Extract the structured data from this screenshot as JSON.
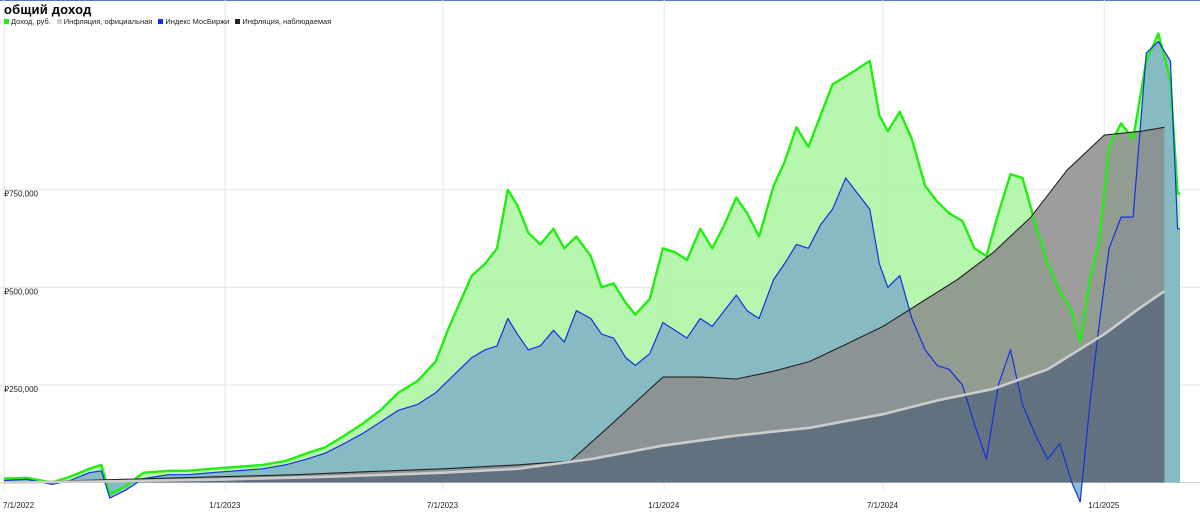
{
  "chart_data": {
    "type": "area",
    "title": "общий доход",
    "legend_position": "top-left",
    "grid": true,
    "x_start": "7/1/2022",
    "x_end": "3/5/2025",
    "x_ticks": [
      "7/1/2022",
      "1/1/2023",
      "7/1/2023",
      "1/1/2024",
      "7/1/2024",
      "1/1/2025"
    ],
    "y_ticks": [
      {
        "value": 250000,
        "label": "₽250,000"
      },
      {
        "value": 500000,
        "label": "₽500,000"
      },
      {
        "value": 750000,
        "label": "₽750,000"
      }
    ],
    "ylim": [
      -50000,
      1190000
    ],
    "series": [
      {
        "name": "Доход, руб.",
        "color": "#22ee11",
        "fill": "#aaf5a0",
        "points": [
          [
            "7/1/2022",
            10000
          ],
          [
            "7/20/2022",
            12000
          ],
          [
            "8/10/2022",
            0
          ],
          [
            "8/25/2022",
            15000
          ],
          [
            "9/10/2022",
            35000
          ],
          [
            "9/20/2022",
            45000
          ],
          [
            "9/27/2022",
            -30000
          ],
          [
            "10/10/2022",
            -10000
          ],
          [
            "10/25/2022",
            25000
          ],
          [
            "11/15/2022",
            30000
          ],
          [
            "12/1/2022",
            30000
          ],
          [
            "12/20/2022",
            35000
          ],
          [
            "1/10/2023",
            40000
          ],
          [
            "2/1/2023",
            45000
          ],
          [
            "2/20/2023",
            55000
          ],
          [
            "3/10/2023",
            75000
          ],
          [
            "3/25/2023",
            90000
          ],
          [
            "4/10/2023",
            120000
          ],
          [
            "4/25/2023",
            150000
          ],
          [
            "5/10/2023",
            185000
          ],
          [
            "5/25/2023",
            230000
          ],
          [
            "6/10/2023",
            260000
          ],
          [
            "6/25/2023",
            310000
          ],
          [
            "7/5/2023",
            390000
          ],
          [
            "7/15/2023",
            460000
          ],
          [
            "7/25/2023",
            530000
          ],
          [
            "8/5/2023",
            560000
          ],
          [
            "8/15/2023",
            600000
          ],
          [
            "8/24/2023",
            750000
          ],
          [
            "9/1/2023",
            710000
          ],
          [
            "9/10/2023",
            640000
          ],
          [
            "9/20/2023",
            610000
          ],
          [
            "10/1/2023",
            650000
          ],
          [
            "10/10/2023",
            600000
          ],
          [
            "10/20/2023",
            630000
          ],
          [
            "11/1/2023",
            580000
          ],
          [
            "11/10/2023",
            500000
          ],
          [
            "11/20/2023",
            510000
          ],
          [
            "11/30/2023",
            460000
          ],
          [
            "12/8/2023",
            430000
          ],
          [
            "12/20/2023",
            470000
          ],
          [
            "12/31/2023",
            600000
          ],
          [
            "1/10/2024",
            590000
          ],
          [
            "1/20/2024",
            570000
          ],
          [
            "1/31/2024",
            650000
          ],
          [
            "2/10/2024",
            600000
          ],
          [
            "2/20/2024",
            660000
          ],
          [
            "3/1/2024",
            730000
          ],
          [
            "3/10/2024",
            690000
          ],
          [
            "3/20/2024",
            630000
          ],
          [
            "4/1/2024",
            760000
          ],
          [
            "4/10/2024",
            820000
          ],
          [
            "4/20/2024",
            910000
          ],
          [
            "4/30/2024",
            860000
          ],
          [
            "5/10/2024",
            940000
          ],
          [
            "5/20/2024",
            1020000
          ],
          [
            "5/31/2024",
            1040000
          ],
          [
            "6/10/2024",
            1060000
          ],
          [
            "6/20/2024",
            1080000
          ],
          [
            "6/28/2024",
            940000
          ],
          [
            "7/5/2024",
            900000
          ],
          [
            "7/15/2024",
            950000
          ],
          [
            "7/25/2024",
            880000
          ],
          [
            "8/5/2024",
            760000
          ],
          [
            "8/15/2024",
            720000
          ],
          [
            "8/25/2024",
            690000
          ],
          [
            "9/5/2024",
            670000
          ],
          [
            "9/15/2024",
            600000
          ],
          [
            "9/25/2024",
            580000
          ],
          [
            "10/5/2024",
            690000
          ],
          [
            "10/15/2024",
            790000
          ],
          [
            "10/25/2024",
            780000
          ],
          [
            "11/5/2024",
            660000
          ],
          [
            "11/15/2024",
            560000
          ],
          [
            "11/25/2024",
            490000
          ],
          [
            "12/5/2024",
            440000
          ],
          [
            "12/12/2024",
            360000
          ],
          [
            "12/20/2024",
            520000
          ],
          [
            "12/28/2024",
            620000
          ],
          [
            "1/5/2025",
            860000
          ],
          [
            "1/15/2025",
            920000
          ],
          [
            "1/25/2025",
            880000
          ],
          [
            "2/5/2025",
            1080000
          ],
          [
            "2/15/2025",
            1150000
          ],
          [
            "2/25/2025",
            1030000
          ],
          [
            "3/3/2025",
            740000
          ],
          [
            "3/5/2025",
            740000
          ]
        ]
      },
      {
        "name": "Индекс МосБиржи",
        "color": "#1133dd",
        "fill": "#7fb0c8",
        "points": [
          [
            "7/1/2022",
            5000
          ],
          [
            "7/20/2022",
            8000
          ],
          [
            "8/10/2022",
            -5000
          ],
          [
            "8/25/2022",
            5000
          ],
          [
            "9/10/2022",
            25000
          ],
          [
            "9/20/2022",
            30000
          ],
          [
            "9/27/2022",
            -40000
          ],
          [
            "10/10/2022",
            -20000
          ],
          [
            "10/25/2022",
            10000
          ],
          [
            "11/15/2022",
            20000
          ],
          [
            "12/1/2022",
            20000
          ],
          [
            "12/20/2022",
            25000
          ],
          [
            "1/10/2023",
            30000
          ],
          [
            "2/1/2023",
            35000
          ],
          [
            "2/20/2023",
            45000
          ],
          [
            "3/10/2023",
            60000
          ],
          [
            "3/25/2023",
            75000
          ],
          [
            "4/10/2023",
            100000
          ],
          [
            "4/25/2023",
            125000
          ],
          [
            "5/10/2023",
            155000
          ],
          [
            "5/25/2023",
            185000
          ],
          [
            "6/10/2023",
            200000
          ],
          [
            "6/25/2023",
            230000
          ],
          [
            "7/5/2023",
            260000
          ],
          [
            "7/15/2023",
            290000
          ],
          [
            "7/25/2023",
            320000
          ],
          [
            "8/5/2023",
            340000
          ],
          [
            "8/15/2023",
            350000
          ],
          [
            "8/24/2023",
            420000
          ],
          [
            "9/1/2023",
            380000
          ],
          [
            "9/10/2023",
            340000
          ],
          [
            "9/20/2023",
            350000
          ],
          [
            "10/1/2023",
            390000
          ],
          [
            "10/10/2023",
            360000
          ],
          [
            "10/20/2023",
            440000
          ],
          [
            "11/1/2023",
            420000
          ],
          [
            "11/10/2023",
            380000
          ],
          [
            "11/20/2023",
            370000
          ],
          [
            "11/30/2023",
            320000
          ],
          [
            "12/8/2023",
            300000
          ],
          [
            "12/20/2023",
            330000
          ],
          [
            "12/31/2023",
            410000
          ],
          [
            "1/10/2024",
            390000
          ],
          [
            "1/20/2024",
            370000
          ],
          [
            "1/31/2024",
            420000
          ],
          [
            "2/10/2024",
            400000
          ],
          [
            "2/20/2024",
            440000
          ],
          [
            "3/1/2024",
            480000
          ],
          [
            "3/10/2024",
            440000
          ],
          [
            "3/20/2024",
            420000
          ],
          [
            "4/1/2024",
            520000
          ],
          [
            "4/10/2024",
            560000
          ],
          [
            "4/20/2024",
            610000
          ],
          [
            "4/30/2024",
            600000
          ],
          [
            "5/10/2024",
            660000
          ],
          [
            "5/20/2024",
            700000
          ],
          [
            "5/31/2024",
            780000
          ],
          [
            "6/10/2024",
            740000
          ],
          [
            "6/20/2024",
            700000
          ],
          [
            "6/28/2024",
            560000
          ],
          [
            "7/5/2024",
            500000
          ],
          [
            "7/15/2024",
            530000
          ],
          [
            "7/25/2024",
            420000
          ],
          [
            "8/5/2024",
            340000
          ],
          [
            "8/15/2024",
            300000
          ],
          [
            "8/25/2024",
            290000
          ],
          [
            "9/5/2024",
            250000
          ],
          [
            "9/15/2024",
            150000
          ],
          [
            "9/25/2024",
            60000
          ],
          [
            "10/5/2024",
            250000
          ],
          [
            "10/15/2024",
            340000
          ],
          [
            "10/25/2024",
            200000
          ],
          [
            "11/5/2024",
            120000
          ],
          [
            "11/15/2024",
            60000
          ],
          [
            "11/25/2024",
            100000
          ],
          [
            "12/5/2024",
            0
          ],
          [
            "12/12/2024",
            -50000
          ],
          [
            "12/20/2024",
            200000
          ],
          [
            "12/28/2024",
            410000
          ],
          [
            "1/5/2025",
            600000
          ],
          [
            "1/15/2025",
            680000
          ],
          [
            "1/25/2025",
            680000
          ],
          [
            "2/5/2025",
            1100000
          ],
          [
            "2/15/2025",
            1130000
          ],
          [
            "2/25/2025",
            1080000
          ],
          [
            "3/3/2025",
            650000
          ],
          [
            "3/5/2025",
            650000
          ]
        ]
      },
      {
        "name": "Инфляция, наблюдаемая",
        "color": "#222222",
        "fill": "#8c8c8c",
        "points": [
          [
            "7/1/2022",
            0
          ],
          [
            "9/1/2022",
            5000
          ],
          [
            "11/1/2022",
            10000
          ],
          [
            "1/1/2023",
            15000
          ],
          [
            "3/1/2023",
            20000
          ],
          [
            "5/1/2023",
            28000
          ],
          [
            "7/1/2023",
            35000
          ],
          [
            "9/1/2023",
            45000
          ],
          [
            "10/15/2023",
            55000
          ],
          [
            "11/15/2023",
            140000
          ],
          [
            "12/31/2023",
            270000
          ],
          [
            "2/1/2024",
            270000
          ],
          [
            "3/1/2024",
            265000
          ],
          [
            "4/1/2024",
            285000
          ],
          [
            "5/1/2024",
            310000
          ],
          [
            "6/1/2024",
            355000
          ],
          [
            "7/1/2024",
            400000
          ],
          [
            "8/1/2024",
            460000
          ],
          [
            "9/1/2024",
            520000
          ],
          [
            "10/1/2024",
            590000
          ],
          [
            "11/1/2024",
            680000
          ],
          [
            "12/1/2024",
            800000
          ],
          [
            "1/1/2025",
            890000
          ],
          [
            "2/1/2025",
            900000
          ],
          [
            "2/20/2025",
            910000
          ]
        ]
      },
      {
        "name": "Инфляция, официальная",
        "color": "#cccccc",
        "fill": "#5b6b7c",
        "points": [
          [
            "7/1/2022",
            0
          ],
          [
            "10/1/2022",
            3000
          ],
          [
            "1/1/2023",
            8000
          ],
          [
            "4/1/2023",
            15000
          ],
          [
            "7/1/2023",
            25000
          ],
          [
            "9/1/2023",
            35000
          ],
          [
            "11/1/2023",
            60000
          ],
          [
            "1/1/2024",
            95000
          ],
          [
            "3/1/2024",
            120000
          ],
          [
            "5/1/2024",
            140000
          ],
          [
            "7/1/2024",
            175000
          ],
          [
            "8/15/2024",
            210000
          ],
          [
            "10/1/2024",
            240000
          ],
          [
            "11/15/2024",
            290000
          ],
          [
            "1/1/2025",
            380000
          ],
          [
            "2/1/2025",
            450000
          ],
          [
            "2/20/2025",
            490000
          ]
        ]
      }
    ]
  }
}
